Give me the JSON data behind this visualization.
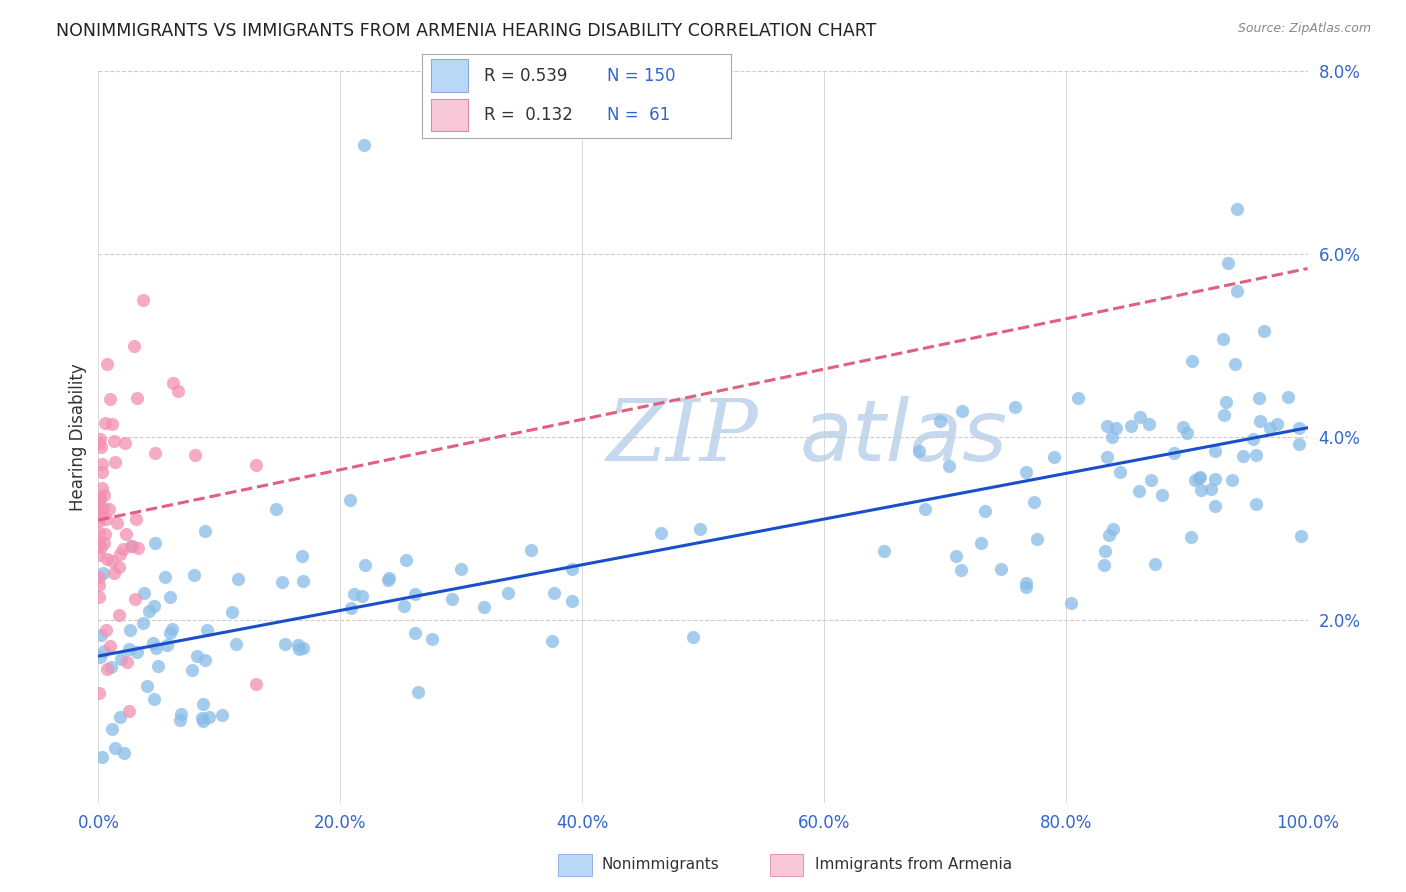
{
  "title": "NONIMMIGRANTS VS IMMIGRANTS FROM ARMENIA HEARING DISABILITY CORRELATION CHART",
  "source": "Source: ZipAtlas.com",
  "ylabel": "Hearing Disability",
  "watermark_line1": "ZIP",
  "watermark_line2": "atlas",
  "nonimmigrants_R": 0.539,
  "nonimmigrants_N": 150,
  "immigrants_R": 0.132,
  "immigrants_N": 61,
  "scatter_color_nonimmigrants": "#88bce8",
  "scatter_color_immigrants": "#f48fb1",
  "line_color_nonimmigrants": "#1a4fcc",
  "line_color_immigrants": "#e06080",
  "legend_box_color_nonimmigrants": "#b8d8f5",
  "legend_box_color_immigrants": "#f8c8d8",
  "xlim": [
    0.0,
    1.0
  ],
  "ylim": [
    0.0,
    0.08
  ],
  "yticks": [
    0.02,
    0.04,
    0.06,
    0.08
  ],
  "ytick_labels": [
    "2.0%",
    "4.0%",
    "6.0%",
    "8.0%"
  ],
  "xticks": [
    0.0,
    0.2,
    0.4,
    0.6,
    0.8,
    1.0
  ],
  "xtick_labels": [
    "0.0%",
    "20.0%",
    "40.0%",
    "60.0%",
    "80.0%",
    "100.0%"
  ],
  "grid_color": "#cccccc",
  "background_color": "#ffffff",
  "watermark_color": "#c5d8ee",
  "title_fontsize": 12.5,
  "axis_label_fontsize": 12,
  "tick_fontsize": 12,
  "tick_color": "#3366cc",
  "legend_text_color": "#3366cc",
  "legend_label_color": "#333333"
}
